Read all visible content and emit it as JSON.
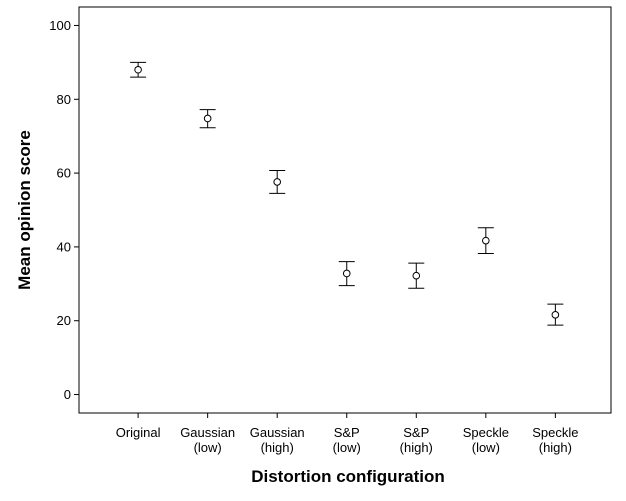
{
  "chart_data": {
    "type": "scatter",
    "subtype": "error-bar",
    "xlabel": "Distortion configuration",
    "ylabel": "Mean opinion score",
    "ylim": [
      -5,
      105
    ],
    "yticks": [
      0,
      20,
      40,
      60,
      80,
      100
    ],
    "grid": false,
    "categories": [
      [
        "Original"
      ],
      [
        "Gaussian",
        "(low)"
      ],
      [
        "Gaussian",
        "(high)"
      ],
      [
        "S&P",
        "(low)"
      ],
      [
        "S&P",
        "(high)"
      ],
      [
        "Speckle",
        "(low)"
      ],
      [
        "Speckle",
        "(high)"
      ]
    ],
    "series": [
      {
        "values": [
          88.0,
          74.8,
          57.6,
          32.8,
          32.2,
          41.7,
          21.6
        ],
        "lower": [
          86.0,
          72.3,
          54.5,
          29.5,
          28.8,
          38.2,
          18.8
        ],
        "upper": [
          90.0,
          77.2,
          60.7,
          36.0,
          35.6,
          45.2,
          24.5
        ]
      }
    ],
    "colors": {
      "marker": "#000000",
      "axis": "#000000",
      "plot_border": "#000000"
    }
  }
}
